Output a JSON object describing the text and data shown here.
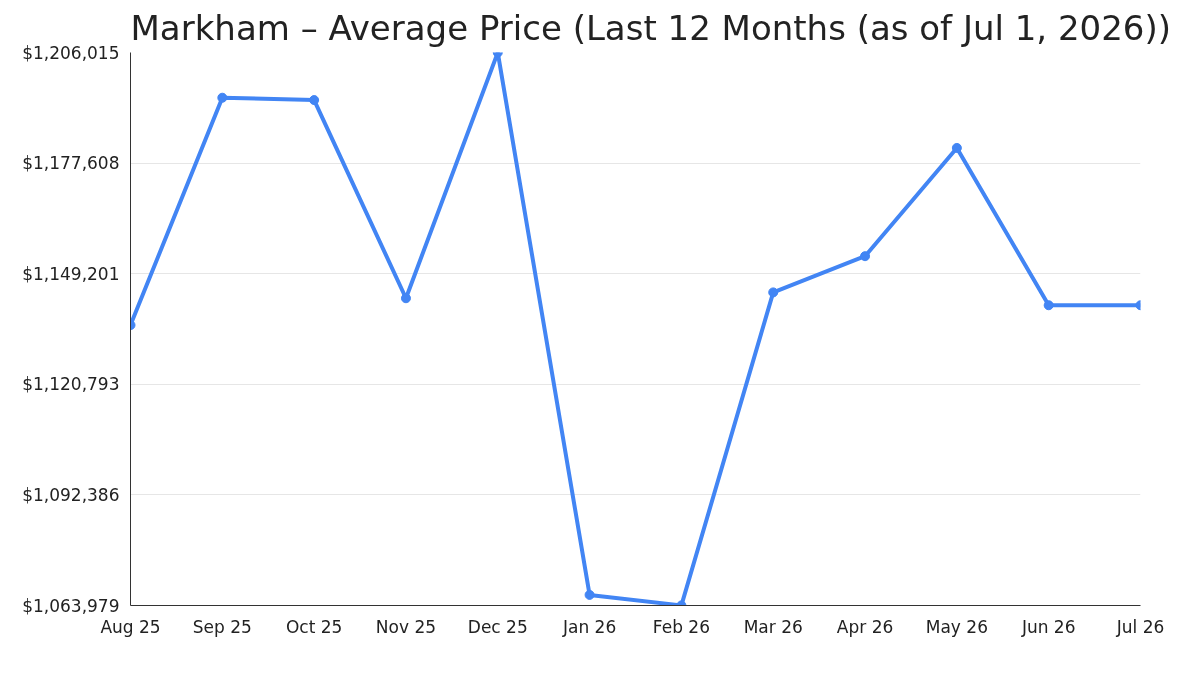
{
  "chart_data": {
    "type": "line",
    "title": "Markham – Average Price (Last 12 Months (as of Jul 1, 2026))",
    "categories": [
      "Aug 25",
      "Sep 25",
      "Oct 25",
      "Nov 25",
      "Dec 25",
      "Jan 26",
      "Feb 26",
      "Mar 26",
      "Apr 26",
      "May 26",
      "Jun 26",
      "Jul 26"
    ],
    "series": [
      {
        "color": "#4285f4",
        "values": [
          1136000,
          1194400,
          1193800,
          1142900,
          1206000,
          1066700,
          1064000,
          1144400,
          1153700,
          1181500,
          1141100,
          1141100
        ]
      }
    ],
    "ylim": [
      1063979,
      1206015
    ],
    "yticks": [
      {
        "value": 1063979,
        "label": "$1,063,979"
      },
      {
        "value": 1092386,
        "label": "$1,092,386"
      },
      {
        "value": 1120793,
        "label": "$1,120,793"
      },
      {
        "value": 1149201,
        "label": "$1,149,201"
      },
      {
        "value": 1177608,
        "label": "$1,177,608"
      },
      {
        "value": 1206015,
        "label": "$1,206,015"
      }
    ],
    "grid": "y",
    "marker": "circle",
    "line_style": "solid"
  }
}
